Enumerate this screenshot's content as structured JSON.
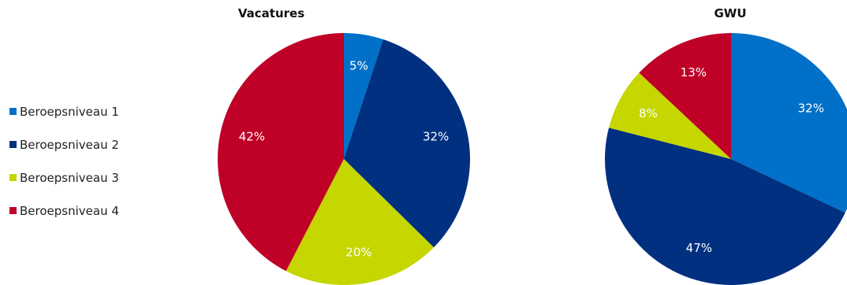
{
  "legend": {
    "items": [
      {
        "label": "Beroepsniveau 1",
        "color": "#0070c8"
      },
      {
        "label": "Beroepsniveau 2",
        "color": "#00307f"
      },
      {
        "label": "Beroepsniveau 3",
        "color": "#c5d600"
      },
      {
        "label": "Beroepsniveau 4",
        "color": "#bf0027"
      }
    ]
  },
  "chart_data": [
    {
      "type": "pie",
      "title": "Vacatures",
      "categories": [
        "Beroepsniveau 1",
        "Beroepsniveau 2",
        "Beroepsniveau 3",
        "Beroepsniveau 4"
      ],
      "values": [
        5,
        32,
        20,
        42
      ],
      "labels": [
        "5%",
        "32%",
        "20%",
        "42%"
      ],
      "colors": [
        "#0070c8",
        "#00307f",
        "#c5d600",
        "#bf0027"
      ]
    },
    {
      "type": "pie",
      "title": "GWU",
      "categories": [
        "Beroepsniveau 1",
        "Beroepsniveau 2",
        "Beroepsniveau 3",
        "Beroepsniveau 4"
      ],
      "values": [
        32,
        47,
        8,
        13
      ],
      "labels": [
        "32%",
        "47%",
        "8%",
        "13%"
      ],
      "colors": [
        "#0070c8",
        "#00307f",
        "#c5d600",
        "#bf0027"
      ]
    }
  ]
}
